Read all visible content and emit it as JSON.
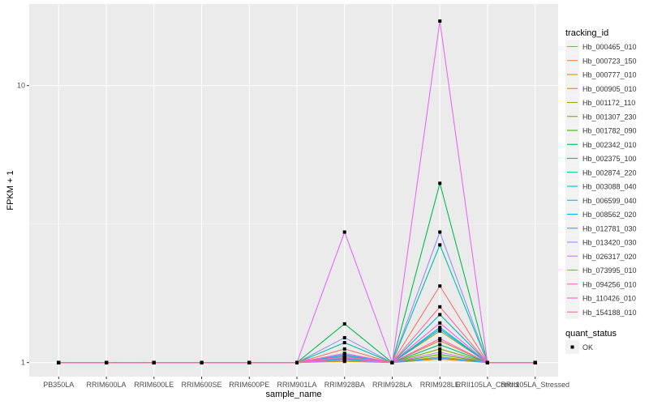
{
  "chart_data": {
    "type": "line",
    "xlabel": "sample_name",
    "ylabel": "FPKM + 1",
    "y_scale": "log10",
    "ylim": [
      0.89,
      19.7
    ],
    "y_ticks": [
      "1",
      "10"
    ],
    "grid": true,
    "legend_placement": "right",
    "categories": [
      "PB350LA",
      "RRIM600LA",
      "RRIM600LE",
      "RRIM600SE",
      "RRIM600PE",
      "RRIM901LA",
      "RRIM928BA",
      "RRIM928LA",
      "RRIM928LE",
      "RRII105LA_Control",
      "RRII105LA_Stressed"
    ],
    "legend_title": "tracking_id",
    "shape_legend": {
      "title": "quant_status",
      "items": [
        "OK"
      ]
    },
    "series": [
      {
        "name": "Hb_000465_010",
        "color": "#F8766D",
        "values": [
          1,
          1,
          1,
          1,
          1,
          1,
          1.12,
          1,
          1.89,
          1,
          1
        ]
      },
      {
        "name": "Hb_000723_150",
        "color": "#EA8331",
        "values": [
          1,
          1,
          1,
          1,
          1,
          1,
          1.03,
          1,
          1.2,
          1,
          1
        ]
      },
      {
        "name": "Hb_000777_010",
        "color": "#D89000",
        "values": [
          1,
          1,
          1,
          1,
          1,
          1,
          1.01,
          1,
          1.03,
          1,
          1
        ]
      },
      {
        "name": "Hb_000905_010",
        "color": "#C09B00",
        "values": [
          1,
          1,
          1,
          1,
          1,
          1,
          1.02,
          1,
          1.05,
          1,
          1
        ]
      },
      {
        "name": "Hb_001172_110",
        "color": "#A3A500",
        "values": [
          1,
          1,
          1,
          1,
          1,
          1,
          1.03,
          1,
          1.3,
          1,
          1
        ]
      },
      {
        "name": "Hb_001307_230",
        "color": "#7CAE00",
        "values": [
          1,
          1,
          1,
          1,
          1,
          1,
          1.02,
          1,
          1.12,
          1,
          1
        ]
      },
      {
        "name": "Hb_001782_090",
        "color": "#39B600",
        "values": [
          1,
          1,
          1,
          1,
          1,
          1,
          1.04,
          1,
          1.07,
          1,
          1
        ]
      },
      {
        "name": "Hb_002342_010",
        "color": "#00BB4E",
        "values": [
          1,
          1,
          1,
          1,
          1,
          1,
          1.38,
          1,
          4.44,
          1,
          1
        ]
      },
      {
        "name": "Hb_002375_100",
        "color": "#00BF7D",
        "values": [
          1,
          1,
          1,
          1,
          1,
          1,
          1.05,
          1,
          1.16,
          1,
          1
        ]
      },
      {
        "name": "Hb_002874_220",
        "color": "#00C1A3",
        "values": [
          1,
          1,
          1,
          1,
          1,
          1,
          1.18,
          1,
          2.66,
          1,
          1
        ]
      },
      {
        "name": "Hb_003088_040",
        "color": "#00BFC4",
        "values": [
          1,
          1,
          1,
          1,
          1,
          1,
          1.06,
          1,
          1.49,
          1,
          1
        ]
      },
      {
        "name": "Hb_006599_040",
        "color": "#00BAE0",
        "values": [
          1,
          1,
          1,
          1,
          1,
          1,
          1.02,
          1,
          1.34,
          1,
          1
        ]
      },
      {
        "name": "Hb_008562_020",
        "color": "#00B0F6",
        "values": [
          1,
          1,
          1,
          1,
          1,
          1,
          1.03,
          1,
          1.32,
          1,
          1
        ]
      },
      {
        "name": "Hb_012781_030",
        "color": "#35A2FF",
        "values": [
          1,
          1,
          1,
          1,
          1,
          1,
          1.07,
          1,
          1.04,
          1,
          1
        ]
      },
      {
        "name": "Hb_013420_030",
        "color": "#9590FF",
        "values": [
          1,
          1,
          1,
          1,
          1,
          1,
          1.23,
          1,
          2.96,
          1,
          1
        ]
      },
      {
        "name": "Hb_026317_020",
        "color": "#C77CFF",
        "values": [
          1,
          1,
          1,
          1,
          1,
          1,
          1.02,
          1,
          1.09,
          1,
          1
        ]
      },
      {
        "name": "Hb_073995_010",
        "color": "#E76BF3",
        "values": [
          1,
          1,
          1,
          1,
          1,
          1,
          2.96,
          1,
          17.1,
          1,
          1
        ]
      },
      {
        "name": "Hb_094256_010",
        "color": "#FA62DB",
        "values": [
          1,
          1,
          1,
          1,
          1,
          1,
          1.04,
          1,
          1.39,
          1,
          1
        ]
      },
      {
        "name": "Hb_110426_010",
        "color": "#FF62BC",
        "values": [
          1,
          1,
          1,
          1,
          1,
          1,
          1.08,
          1,
          1.22,
          1,
          1
        ]
      },
      {
        "name": "Hb_154188_010",
        "color": "#FF6C91",
        "values": [
          1,
          1,
          1,
          1,
          1,
          1,
          1.05,
          1,
          1.59,
          1,
          1
        ]
      }
    ]
  }
}
